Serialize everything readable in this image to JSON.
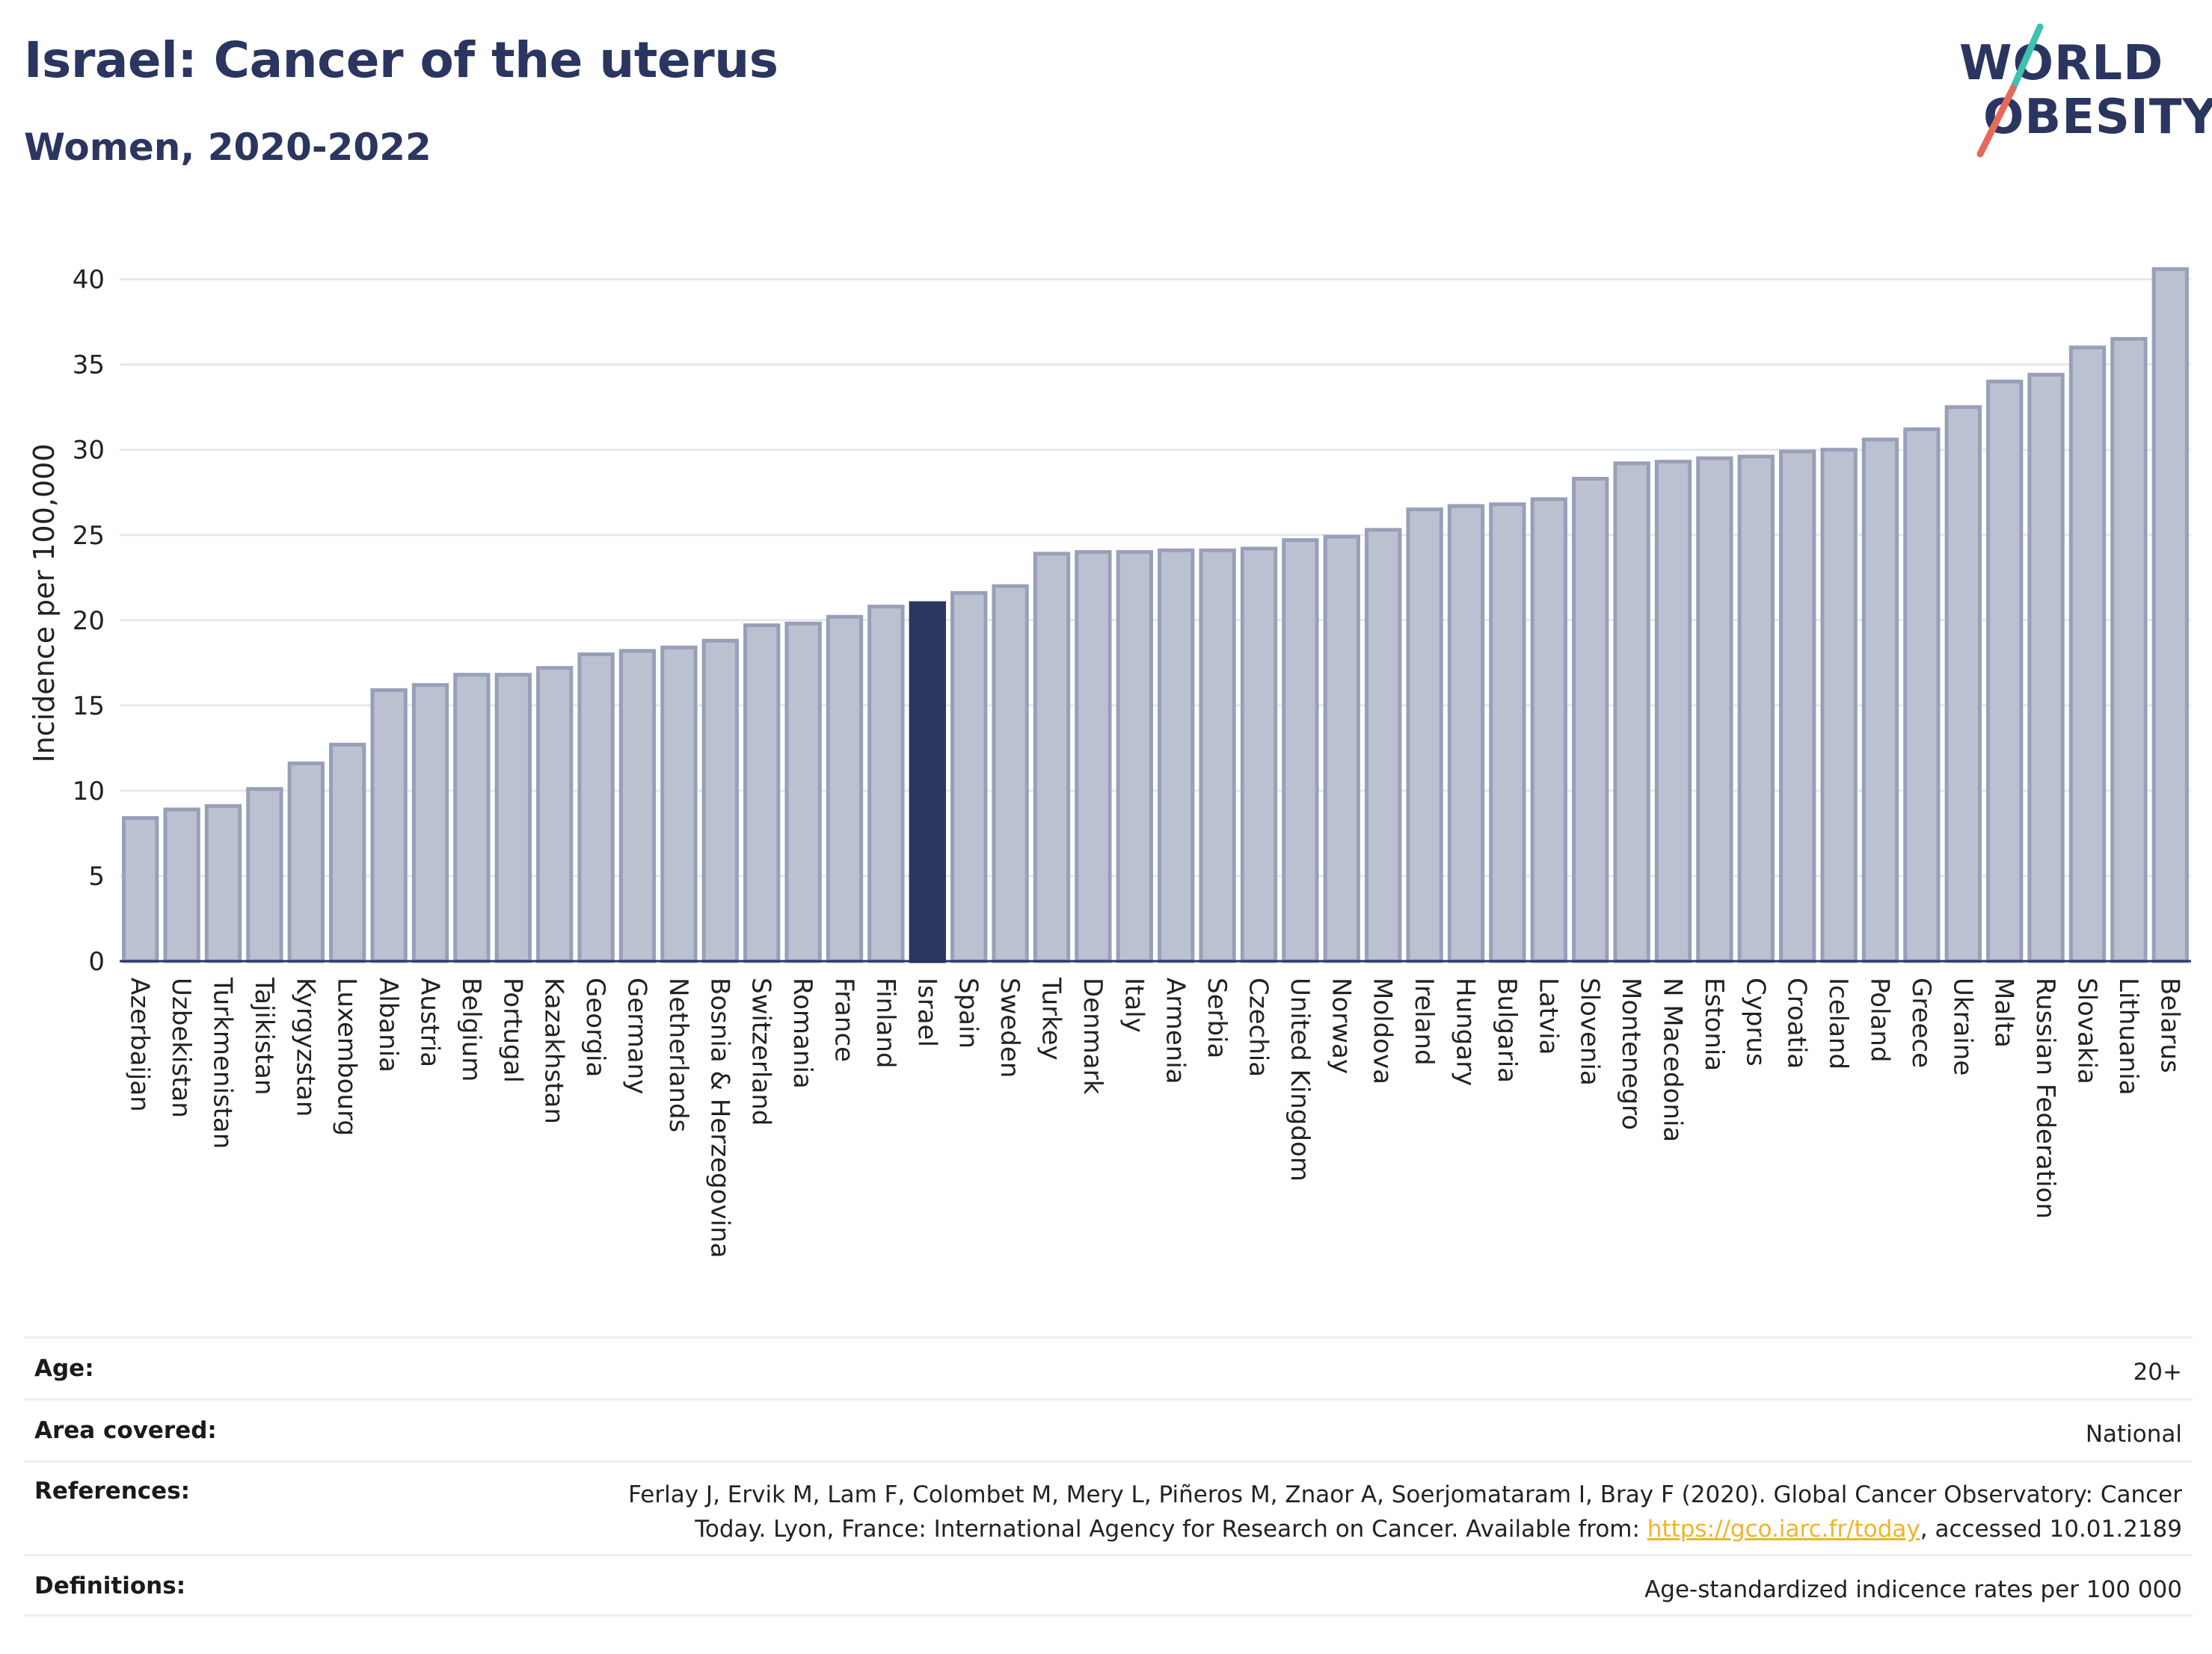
{
  "header": {
    "title": "Israel: Cancer of the uterus",
    "subtitle": "Women, 2020-2022"
  },
  "logo": {
    "line1": "WORLD",
    "line2": "OBESITY",
    "colors": {
      "text": "#2a3560",
      "slash_top": "#3fc1b0",
      "slash_bottom": "#e8685a"
    }
  },
  "colors": {
    "bar": "#bcc1d1",
    "bar_border": "#98a0b8",
    "highlight": "#2a3560",
    "grid": "#e6e8ee",
    "axis": "#2a3560",
    "link": "#f0b429"
  },
  "chart_data": {
    "type": "bar",
    "title": "",
    "xlabel": "",
    "ylabel": "Incidence per 100,000",
    "ylim": [
      0,
      42
    ],
    "yticks": [
      0,
      5,
      10,
      15,
      20,
      25,
      30,
      35,
      40
    ],
    "grid": true,
    "highlight": "Israel",
    "categories": [
      "Azerbaijan",
      "Uzbekistan",
      "Turkmenistan",
      "Tajikistan",
      "Kyrgyzstan",
      "Luxembourg",
      "Albania",
      "Austria",
      "Belgium",
      "Portugal",
      "Kazakhstan",
      "Georgia",
      "Germany",
      "Netherlands",
      "Bosnia & Herzegovina",
      "Switzerland",
      "Romania",
      "France",
      "Finland",
      "Israel",
      "Spain",
      "Sweden",
      "Turkey",
      "Denmark",
      "Italy",
      "Armenia",
      "Serbia",
      "Czechia",
      "United Kingdom",
      "Norway",
      "Moldova",
      "Ireland",
      "Hungary",
      "Bulgaria",
      "Latvia",
      "Slovenia",
      "Montenegro",
      "N Macedonia",
      "Estonia",
      "Cyprus",
      "Croatia",
      "Iceland",
      "Poland",
      "Greece",
      "Ukraine",
      "Malta",
      "Russian Federation",
      "Slovakia",
      "Lithuania",
      "Belarus"
    ],
    "values": [
      8.4,
      8.9,
      9.1,
      10.1,
      11.6,
      12.7,
      15.9,
      16.2,
      16.8,
      16.8,
      17.2,
      18.0,
      18.2,
      18.4,
      18.8,
      19.7,
      19.8,
      20.2,
      20.8,
      21.0,
      21.6,
      22.0,
      23.9,
      24.0,
      24.0,
      24.1,
      24.1,
      24.2,
      24.7,
      24.9,
      25.3,
      26.5,
      26.7,
      26.8,
      27.1,
      28.3,
      29.2,
      29.3,
      29.5,
      29.6,
      29.9,
      30.0,
      30.6,
      31.2,
      32.5,
      34.0,
      34.4,
      36.0,
      36.5,
      40.6
    ]
  },
  "info": {
    "age_label": "Age:",
    "age_value": "20+",
    "area_label": "Area covered:",
    "area_value": "National",
    "references_label": "References:",
    "references_text_1": "Ferlay J, Ervik M, Lam F, Colombet M, Mery L, Piñeros M, Znaor A, Soerjomataram I, Bray F (2020). Global Cancer Observatory: Cancer",
    "references_text_2": "Today. Lyon, France: International Agency for Research on Cancer. Available from:",
    "references_link": "https://gco.iarc.fr/today",
    "references_text_3": ", accessed 10.01.2189",
    "definitions_label": "Definitions:",
    "definitions_value": "Age-standardized indicence rates per 100 000"
  }
}
